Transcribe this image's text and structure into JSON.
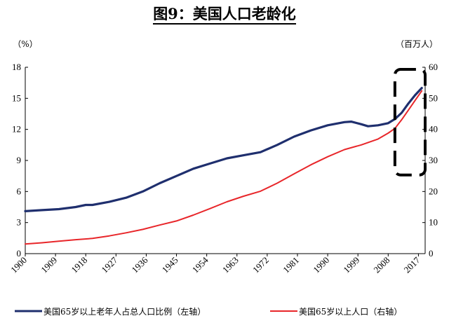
{
  "title": "图9：美国人口老龄化",
  "left_unit": "（%）",
  "right_unit": "（百万人）",
  "colors": {
    "series1": "#1f2f6e",
    "series2": "#e8262a",
    "highlight": "#000000"
  },
  "chart_data": {
    "type": "line",
    "title": "图9：美国人口老龄化",
    "x_ticks": [
      1900,
      1909,
      1918,
      1927,
      1936,
      1945,
      1954,
      1963,
      1972,
      1981,
      1990,
      1999,
      2008,
      2017
    ],
    "xlim": [
      1900,
      2019
    ],
    "y_left": {
      "lim": [
        0,
        18
      ],
      "ticks": [
        0,
        3,
        6,
        9,
        12,
        15,
        18
      ],
      "unit": "（%）"
    },
    "y_right": {
      "lim": [
        0,
        60
      ],
      "ticks": [
        0,
        10,
        20,
        30,
        40,
        50,
        60
      ],
      "unit": "（百万人）"
    },
    "grid": false,
    "legend_position": "bottom",
    "highlight_box": {
      "x_range": [
        2010,
        2019
      ],
      "y_left_range": [
        7.6,
        17.8
      ],
      "style": "dashed"
    },
    "series": [
      {
        "name": "美国65岁以上老年人占总人口比例（左轴）",
        "axis": "left",
        "points": [
          [
            1900,
            4.1
          ],
          [
            1905,
            4.2
          ],
          [
            1910,
            4.3
          ],
          [
            1915,
            4.5
          ],
          [
            1918,
            4.7
          ],
          [
            1920,
            4.7
          ],
          [
            1925,
            5.0
          ],
          [
            1930,
            5.4
          ],
          [
            1935,
            6.0
          ],
          [
            1940,
            6.8
          ],
          [
            1945,
            7.5
          ],
          [
            1950,
            8.2
          ],
          [
            1955,
            8.7
          ],
          [
            1960,
            9.2
          ],
          [
            1965,
            9.5
          ],
          [
            1970,
            9.8
          ],
          [
            1975,
            10.5
          ],
          [
            1980,
            11.3
          ],
          [
            1985,
            11.9
          ],
          [
            1990,
            12.4
          ],
          [
            1995,
            12.7
          ],
          [
            1997,
            12.75
          ],
          [
            2000,
            12.5
          ],
          [
            2002,
            12.3
          ],
          [
            2005,
            12.4
          ],
          [
            2008,
            12.6
          ],
          [
            2010,
            13.0
          ],
          [
            2012,
            13.6
          ],
          [
            2014,
            14.5
          ],
          [
            2016,
            15.3
          ],
          [
            2018,
            16.0
          ]
        ]
      },
      {
        "name": "美国65岁以上人口（右轴）",
        "axis": "right",
        "points": [
          [
            1900,
            3.1
          ],
          [
            1905,
            3.5
          ],
          [
            1910,
            4.0
          ],
          [
            1915,
            4.5
          ],
          [
            1920,
            4.9
          ],
          [
            1925,
            5.7
          ],
          [
            1930,
            6.7
          ],
          [
            1935,
            7.8
          ],
          [
            1940,
            9.2
          ],
          [
            1945,
            10.5
          ],
          [
            1950,
            12.4
          ],
          [
            1955,
            14.5
          ],
          [
            1960,
            16.7
          ],
          [
            1965,
            18.5
          ],
          [
            1970,
            20.1
          ],
          [
            1975,
            22.7
          ],
          [
            1980,
            25.7
          ],
          [
            1985,
            28.6
          ],
          [
            1990,
            31.2
          ],
          [
            1995,
            33.5
          ],
          [
            2000,
            35.0
          ],
          [
            2005,
            36.9
          ],
          [
            2008,
            38.8
          ],
          [
            2010,
            40.3
          ],
          [
            2012,
            43.1
          ],
          [
            2014,
            46.2
          ],
          [
            2016,
            49.3
          ],
          [
            2018,
            52.4
          ]
        ]
      }
    ]
  }
}
